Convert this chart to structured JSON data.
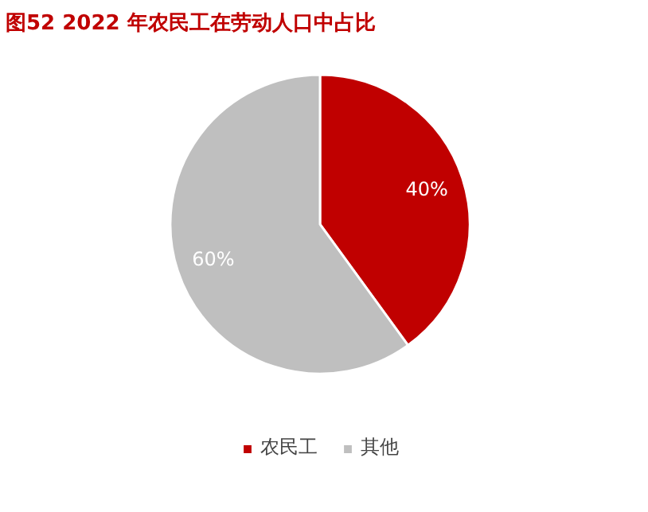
{
  "chart_data": {
    "type": "pie",
    "title": "图52  2022 年农民工在劳动人口中占比",
    "categories": [
      "农民工",
      "其他"
    ],
    "values": [
      40,
      60
    ],
    "colors": [
      "#c00000",
      "#bfbfbf"
    ],
    "value_labels": [
      "40%",
      "60%"
    ],
    "legend": "bottom"
  }
}
